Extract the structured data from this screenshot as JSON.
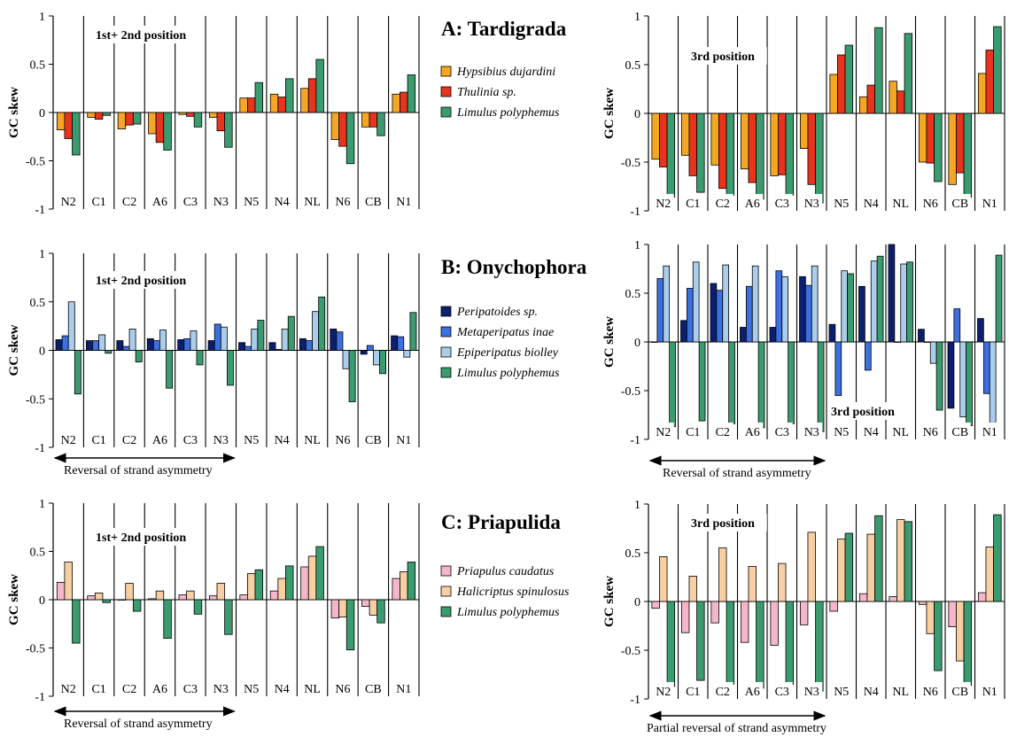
{
  "colors": {
    "hypsibius": "#F5A623",
    "thulinia": "#E8341C",
    "limulus": "#3A9B6E",
    "peripatoides": "#0C1F6E",
    "metaperipatus": "#3C70E0",
    "epiperipatus": "#A9CDEB",
    "priapulus": "#F4B6C8",
    "halicriptus": "#F8CFA3"
  },
  "y_axis_label": "GC skew",
  "chart_data": [
    {
      "type": "bar",
      "id": "A1",
      "row": "A",
      "side": "left",
      "categories": [
        "N2",
        "C1",
        "C2",
        "A6",
        "C3",
        "N3",
        "N5",
        "N4",
        "NL",
        "N6",
        "CB",
        "N1"
      ],
      "ylim": [
        -1,
        1
      ],
      "yticks": [
        "1",
        "0.5",
        "0",
        "-0.5",
        "-1"
      ],
      "annotation": "1st+ 2nd position",
      "series": [
        {
          "name": "Hypsibius dujardini",
          "color_key": "hypsibius",
          "values": [
            -0.18,
            -0.05,
            -0.17,
            -0.22,
            -0.02,
            -0.05,
            0.15,
            0.19,
            0.25,
            -0.28,
            -0.15,
            0.19
          ]
        },
        {
          "name": "Thulinia sp.",
          "color_key": "thulinia",
          "values": [
            -0.27,
            -0.07,
            -0.13,
            -0.31,
            -0.04,
            -0.19,
            0.15,
            0.16,
            0.35,
            -0.35,
            -0.15,
            0.21
          ]
        },
        {
          "name": "Limulus polyphemus",
          "color_key": "limulus",
          "values": [
            -0.44,
            -0.03,
            -0.12,
            -0.39,
            -0.15,
            -0.36,
            0.31,
            0.35,
            0.55,
            -0.53,
            -0.24,
            0.39
          ]
        }
      ]
    },
    {
      "type": "bar",
      "id": "A2",
      "row": "A",
      "side": "right",
      "categories": [
        "N2",
        "C1",
        "C2",
        "A6",
        "C3",
        "N3",
        "N5",
        "N4",
        "NL",
        "N6",
        "CB",
        "N1"
      ],
      "ylim": [
        -1,
        1
      ],
      "yticks": [
        "1",
        "0.5",
        "0",
        "-0.5",
        "-1"
      ],
      "annotation": "3rd position",
      "series": [
        {
          "name": "Hypsibius dujardini",
          "color_key": "hypsibius",
          "values": [
            -0.47,
            -0.43,
            -0.53,
            -0.57,
            -0.64,
            -0.36,
            0.4,
            0.17,
            0.33,
            -0.5,
            -0.73,
            0.41
          ]
        },
        {
          "name": "Thulinia sp.",
          "color_key": "thulinia",
          "values": [
            -0.55,
            -0.64,
            -0.77,
            -0.71,
            -0.63,
            -0.73,
            0.6,
            0.29,
            0.23,
            -0.51,
            -0.61,
            0.65
          ]
        },
        {
          "name": "Limulus polyphemus",
          "color_key": "limulus",
          "values": [
            -0.86,
            -0.81,
            -0.84,
            -0.88,
            -0.84,
            -0.92,
            0.7,
            0.88,
            0.82,
            -0.7,
            -0.86,
            0.89
          ]
        }
      ]
    },
    {
      "type": "bar",
      "id": "B1",
      "row": "B",
      "side": "left",
      "categories": [
        "N2",
        "C1",
        "C2",
        "A6",
        "C3",
        "N3",
        "N5",
        "N4",
        "NL",
        "N6",
        "CB",
        "N1"
      ],
      "ylim": [
        -1,
        1
      ],
      "yticks": [
        "1",
        "0.5",
        "0",
        "-0.5",
        "-1"
      ],
      "annotation": "1st+ 2nd position",
      "series": [
        {
          "name": "Peripatoides sp.",
          "color_key": "peripatoides",
          "values": [
            0.11,
            0.1,
            0.1,
            0.12,
            0.11,
            0.1,
            0.08,
            0.08,
            0.12,
            0.22,
            -0.04,
            0.15
          ]
        },
        {
          "name": "Metaperipatus inae",
          "color_key": "metaperipatus",
          "values": [
            0.15,
            0.1,
            0.04,
            0.1,
            0.12,
            0.27,
            0.04,
            0.01,
            0.1,
            0.19,
            0.05,
            0.14
          ]
        },
        {
          "name": "Epiperipatus biolley",
          "color_key": "epiperipatus",
          "values": [
            0.5,
            0.16,
            0.22,
            0.21,
            0.2,
            0.24,
            0.22,
            0.22,
            0.4,
            -0.19,
            -0.15,
            -0.07
          ]
        },
        {
          "name": "Limulus polyphemus",
          "color_key": "limulus",
          "values": [
            -0.45,
            -0.03,
            -0.12,
            -0.39,
            -0.15,
            -0.36,
            0.31,
            0.35,
            0.55,
            -0.53,
            -0.24,
            0.39
          ]
        }
      ],
      "footnote": "Reversal of strand asymmetry",
      "arrow_span": [
        "N2",
        "N3"
      ]
    },
    {
      "type": "bar",
      "id": "B2",
      "row": "B",
      "side": "right",
      "categories": [
        "N2",
        "C1",
        "C2",
        "A6",
        "C3",
        "N3",
        "N5",
        "N4",
        "NL",
        "N6",
        "CB",
        "N1"
      ],
      "ylim": [
        -1,
        1
      ],
      "yticks": [
        "1",
        "0.5",
        "0",
        "-0.5",
        "-1"
      ],
      "annotation": "3rd position",
      "series": [
        {
          "name": "Peripatoides sp.",
          "color_key": "peripatoides",
          "values": [
            0.0,
            0.22,
            0.6,
            0.15,
            0.15,
            0.67,
            0.18,
            0.57,
            1.0,
            0.13,
            -0.68,
            0.24
          ]
        },
        {
          "name": "Metaperipatus inae",
          "color_key": "metaperipatus",
          "values": [
            0.65,
            0.55,
            0.53,
            0.57,
            0.73,
            0.58,
            -0.55,
            -0.29,
            0.0,
            0.0,
            0.34,
            -0.53
          ]
        },
        {
          "name": "Epiperipatus biolley",
          "color_key": "epiperipatus",
          "values": [
            0.78,
            0.82,
            0.79,
            0.78,
            0.67,
            0.78,
            0.73,
            0.83,
            0.8,
            -0.22,
            -0.77,
            -0.83
          ]
        },
        {
          "name": "Limulus polyphemus",
          "color_key": "limulus",
          "values": [
            -0.87,
            -0.81,
            -0.84,
            -0.88,
            -0.84,
            -0.92,
            0.7,
            0.88,
            0.82,
            -0.7,
            -0.86,
            0.89
          ]
        }
      ],
      "footnote": "Reversal of strand asymmetry",
      "arrow_span": [
        "N2",
        "N3"
      ]
    },
    {
      "type": "bar",
      "id": "C1",
      "row": "C",
      "side": "left",
      "categories": [
        "N2",
        "C1",
        "C2",
        "A6",
        "C3",
        "N3",
        "N5",
        "N4",
        "NL",
        "N6",
        "CB",
        "N1"
      ],
      "ylim": [
        -1,
        1
      ],
      "yticks": [
        "1",
        "0.5",
        "0",
        "-0.5",
        "-1"
      ],
      "annotation": "1st+ 2nd position",
      "series": [
        {
          "name": "Priapulus caudatus",
          "color_key": "priapulus",
          "values": [
            0.18,
            0.04,
            0.0,
            0.01,
            0.05,
            0.04,
            0.05,
            0.09,
            0.34,
            -0.19,
            -0.07,
            0.22
          ]
        },
        {
          "name": "Halicriptus spinulosus",
          "color_key": "halicriptus",
          "values": [
            0.39,
            0.07,
            0.17,
            0.09,
            0.09,
            0.17,
            0.27,
            0.22,
            0.45,
            -0.18,
            -0.16,
            0.29
          ]
        },
        {
          "name": "Limulus polyphemus",
          "color_key": "limulus",
          "values": [
            -0.45,
            -0.03,
            -0.12,
            -0.4,
            -0.15,
            -0.36,
            0.31,
            0.35,
            0.55,
            -0.52,
            -0.24,
            0.39
          ]
        }
      ],
      "footnote": "Reversal of strand asymmetry",
      "arrow_span": [
        "N2",
        "N3"
      ]
    },
    {
      "type": "bar",
      "id": "C2",
      "row": "C",
      "side": "right",
      "categories": [
        "N2",
        "C1",
        "C2",
        "A6",
        "C3",
        "N3",
        "N5",
        "N4",
        "NL",
        "N6",
        "CB",
        "N1"
      ],
      "ylim": [
        -1,
        1
      ],
      "yticks": [
        "1",
        "0.5",
        "0",
        "-0.5",
        "-1"
      ],
      "annotation": "3rd position",
      "series": [
        {
          "name": "Priapulus caudatus",
          "color_key": "priapulus",
          "values": [
            -0.07,
            -0.32,
            -0.22,
            -0.42,
            -0.45,
            -0.24,
            -0.1,
            0.08,
            0.05,
            -0.03,
            -0.26,
            0.09
          ]
        },
        {
          "name": "Halicriptus spinulosus",
          "color_key": "halicriptus",
          "values": [
            0.46,
            0.26,
            0.55,
            0.36,
            0.39,
            0.71,
            0.64,
            0.69,
            0.84,
            -0.33,
            -0.61,
            0.56
          ]
        },
        {
          "name": "Limulus polyphemus",
          "color_key": "limulus",
          "values": [
            -0.87,
            -0.81,
            -0.85,
            -0.89,
            -0.85,
            -0.92,
            0.7,
            0.88,
            0.82,
            -0.71,
            -0.86,
            0.89
          ]
        }
      ],
      "footnote": "Partial reversal of strand asymmetry",
      "arrow_span": [
        "N2",
        "N3"
      ]
    }
  ],
  "groups": [
    {
      "row": "A",
      "title": "A: Tardigrada",
      "legend": [
        {
          "name": "Hypsibius dujardini",
          "color_key": "hypsibius"
        },
        {
          "name": "Thulinia sp.",
          "color_key": "thulinia"
        },
        {
          "name": "Limulus polyphemus",
          "color_key": "limulus"
        }
      ]
    },
    {
      "row": "B",
      "title": "B: Onychophora",
      "legend": [
        {
          "name": "Peripatoides sp.",
          "color_key": "peripatoides"
        },
        {
          "name": "Metaperipatus inae",
          "color_key": "metaperipatus"
        },
        {
          "name": "Epiperipatus biolley",
          "color_key": "epiperipatus"
        },
        {
          "name": "Limulus polyphemus",
          "color_key": "limulus"
        }
      ]
    },
    {
      "row": "C",
      "title": "C: Priapulida",
      "legend": [
        {
          "name": "Priapulus caudatus",
          "color_key": "priapulus"
        },
        {
          "name": "Halicriptus spinulosus",
          "color_key": "halicriptus"
        },
        {
          "name": "Limulus polyphemus",
          "color_key": "limulus"
        }
      ]
    }
  ]
}
